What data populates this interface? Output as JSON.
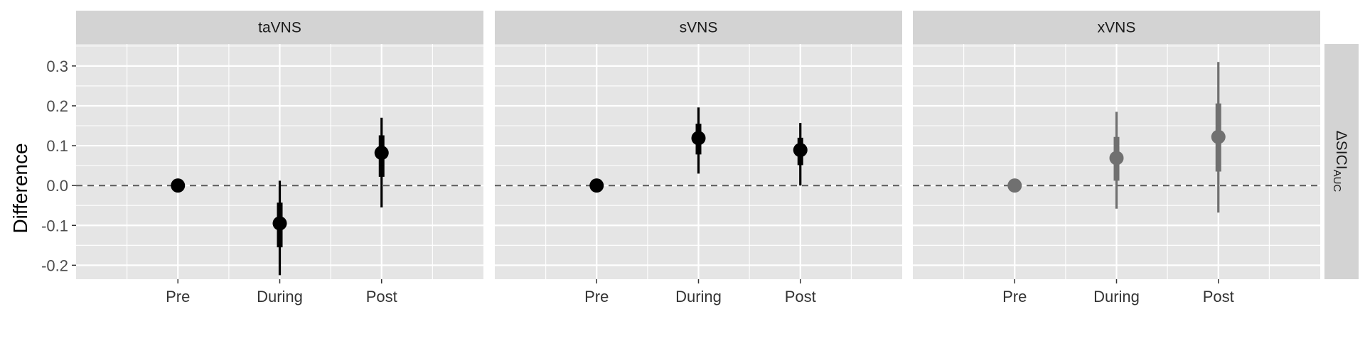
{
  "chart_data": {
    "type": "scatter",
    "subtype": "point-range with inner and outer intervals, faceted",
    "ylabel": "Difference",
    "xlabel": "",
    "row_strip_label": "ΔSICI",
    "row_strip_subscript": "AUC",
    "ylim": [
      -0.235,
      0.355
    ],
    "yticks": [
      -0.2,
      -0.1,
      0.0,
      0.1,
      0.2,
      0.3
    ],
    "ytick_labels": [
      "-0.2",
      "-0.1",
      "0.0",
      "0.1",
      "0.2",
      "0.3"
    ],
    "categories": [
      "Pre",
      "During",
      "Post"
    ],
    "reference_line": 0.0,
    "grid": true,
    "colors": {
      "panel_bg": "#e5e5e5",
      "strip_bg": "#d3d3d3",
      "grid": "#ffffff",
      "ref_line": "#666666"
    },
    "facets": [
      {
        "name": "taVNS",
        "color": "#000000",
        "points": [
          {
            "x": "Pre",
            "y": 0.0,
            "inner": [
              0.0,
              0.0
            ],
            "outer": [
              0.0,
              0.0
            ]
          },
          {
            "x": "During",
            "y": -0.095,
            "inner": [
              -0.155,
              -0.043
            ],
            "outer": [
              -0.225,
              0.012
            ]
          },
          {
            "x": "Post",
            "y": 0.082,
            "inner": [
              0.022,
              0.126
            ],
            "outer": [
              -0.055,
              0.17
            ]
          }
        ]
      },
      {
        "name": "sVNS",
        "color": "#000000",
        "points": [
          {
            "x": "Pre",
            "y": 0.0,
            "inner": [
              0.0,
              0.0
            ],
            "outer": [
              0.0,
              0.0
            ]
          },
          {
            "x": "During",
            "y": 0.119,
            "inner": [
              0.078,
              0.155
            ],
            "outer": [
              0.03,
              0.196
            ]
          },
          {
            "x": "Post",
            "y": 0.089,
            "inner": [
              0.051,
              0.12
            ],
            "outer": [
              0.0,
              0.157
            ]
          }
        ]
      },
      {
        "name": "xVNS",
        "color": "#707070",
        "points": [
          {
            "x": "Pre",
            "y": 0.0,
            "inner": [
              0.0,
              0.0
            ],
            "outer": [
              0.0,
              0.0
            ]
          },
          {
            "x": "During",
            "y": 0.069,
            "inner": [
              0.012,
              0.122
            ],
            "outer": [
              -0.058,
              0.185
            ]
          },
          {
            "x": "Post",
            "y": 0.122,
            "inner": [
              0.035,
              0.206
            ],
            "outer": [
              -0.068,
              0.31
            ]
          }
        ]
      }
    ]
  }
}
